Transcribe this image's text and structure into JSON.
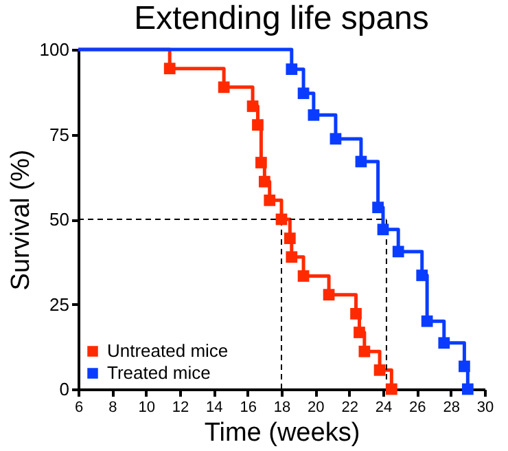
{
  "chart_data": {
    "type": "step",
    "title": "Extending life spans",
    "xlabel": "Time (weeks)",
    "ylabel": "Survival (%)",
    "series": [
      {
        "name": "Untreated mice",
        "color": "#ff2a00",
        "x": [
          6,
          11.4,
          14.6,
          16.3,
          16.6,
          16.8,
          17.0,
          17.3,
          18.0,
          18.5,
          18.6,
          19.3,
          20.8,
          22.4,
          22.6,
          22.9,
          23.8,
          24.5
        ],
        "values": [
          100,
          94.4,
          88.9,
          83.3,
          77.8,
          66.7,
          61.1,
          55.6,
          50,
          44.4,
          38.9,
          33.3,
          27.8,
          22.2,
          16.7,
          11.1,
          5.6,
          0
        ]
      },
      {
        "name": "Treated mice",
        "color": "#0a3cff",
        "x": [
          6,
          18.6,
          19.3,
          19.9,
          21.2,
          22.7,
          23.7,
          24.0,
          24.9,
          26.3,
          26.6,
          27.6,
          28.8,
          29.0
        ],
        "values": [
          100,
          94.2,
          87.1,
          80.7,
          73.7,
          67,
          53.5,
          47,
          40.5,
          33.5,
          20,
          13.6,
          6.7,
          0
        ]
      }
    ],
    "xlim": [
      6,
      30
    ],
    "xticks": [
      6,
      8,
      10,
      12,
      14,
      16,
      18,
      20,
      22,
      24,
      26,
      28,
      30
    ],
    "ylim": [
      0,
      100
    ],
    "yticks": [
      0,
      25,
      50,
      75,
      100
    ],
    "ref_lines": [
      {
        "axis": "y",
        "value": 50,
        "line_style": "dashed",
        "color": "#000000"
      },
      {
        "axis": "x",
        "value": 18,
        "line_style": "dashed",
        "color": "#000000"
      },
      {
        "axis": "x",
        "value": 24.2,
        "line_style": "dashed",
        "color": "#000000"
      }
    ],
    "marker": "square",
    "grid": false,
    "legend": "bottom left"
  }
}
